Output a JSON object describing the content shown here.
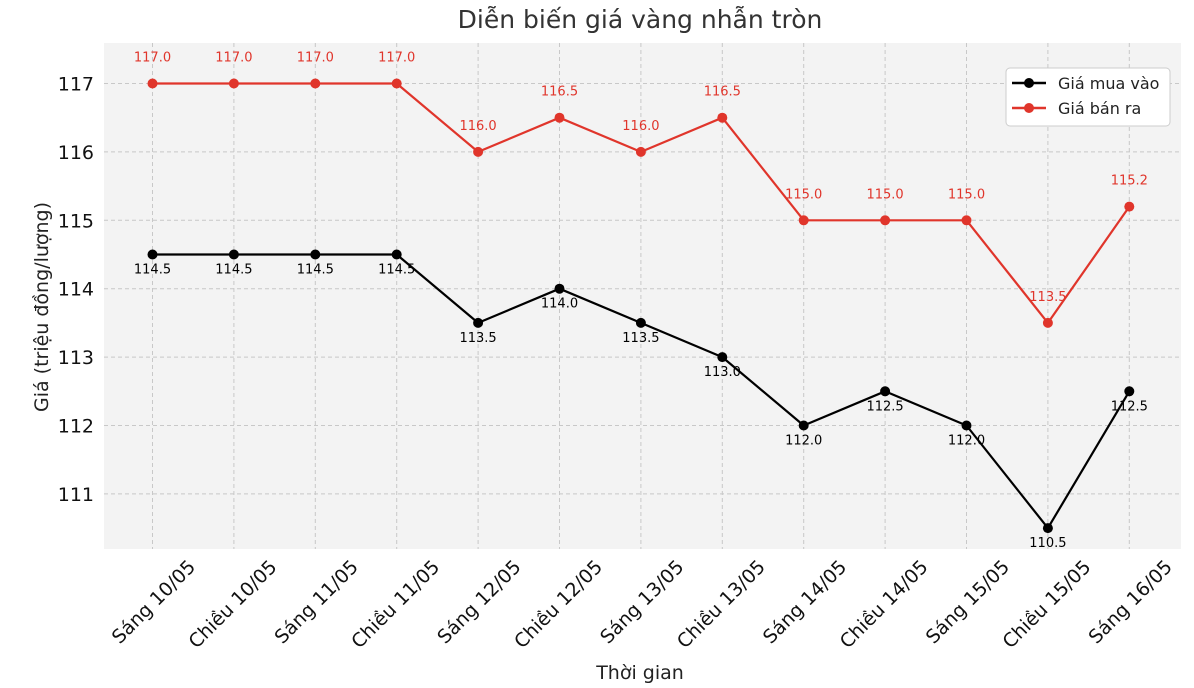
{
  "chart_data": {
    "type": "line",
    "title": "Diễn biến giá vàng nhẫn tròn",
    "xlabel": "Thời gian",
    "ylabel": "Giá (triệu đồng/lượng)",
    "categories": [
      "Sáng 10/05",
      "Chiều 10/05",
      "Sáng 11/05",
      "Chiều 11/05",
      "Sáng 12/05",
      "Chiều 12/05",
      "Sáng 13/05",
      "Chiều 13/05",
      "Sáng 14/05",
      "Chiều 14/05",
      "Sáng 15/05",
      "Chiều 15/05",
      "Sáng 16/05"
    ],
    "yticks": [
      "111",
      "112",
      "113",
      "114",
      "115",
      "116",
      "117"
    ],
    "ylim": [
      110.2,
      117.5
    ],
    "grid": true,
    "legend_position": "top-right",
    "series": [
      {
        "name": "Giá mua vào",
        "color": "#000000",
        "values": [
          114.5,
          114.5,
          114.5,
          114.5,
          113.5,
          114.0,
          113.5,
          113.0,
          112.0,
          112.5,
          112.0,
          110.5,
          112.5
        ],
        "labels": [
          "114.5",
          "114.5",
          "114.5",
          "114.5",
          "113.5",
          "114.0",
          "113.5",
          "113.0",
          "112.0",
          "112.5",
          "112.0",
          "110.5",
          "112.5"
        ]
      },
      {
        "name": "Giá bán ra",
        "color": "#e0352b",
        "values": [
          117.0,
          117.0,
          117.0,
          117.0,
          116.0,
          116.5,
          116.0,
          116.5,
          115.0,
          115.0,
          115.0,
          113.5,
          115.2
        ],
        "labels": [
          "117.0",
          "117.0",
          "117.0",
          "117.0",
          "116.0",
          "116.5",
          "116.0",
          "116.5",
          "115.0",
          "115.0",
          "115.0",
          "113.5",
          "115.2"
        ]
      }
    ]
  }
}
